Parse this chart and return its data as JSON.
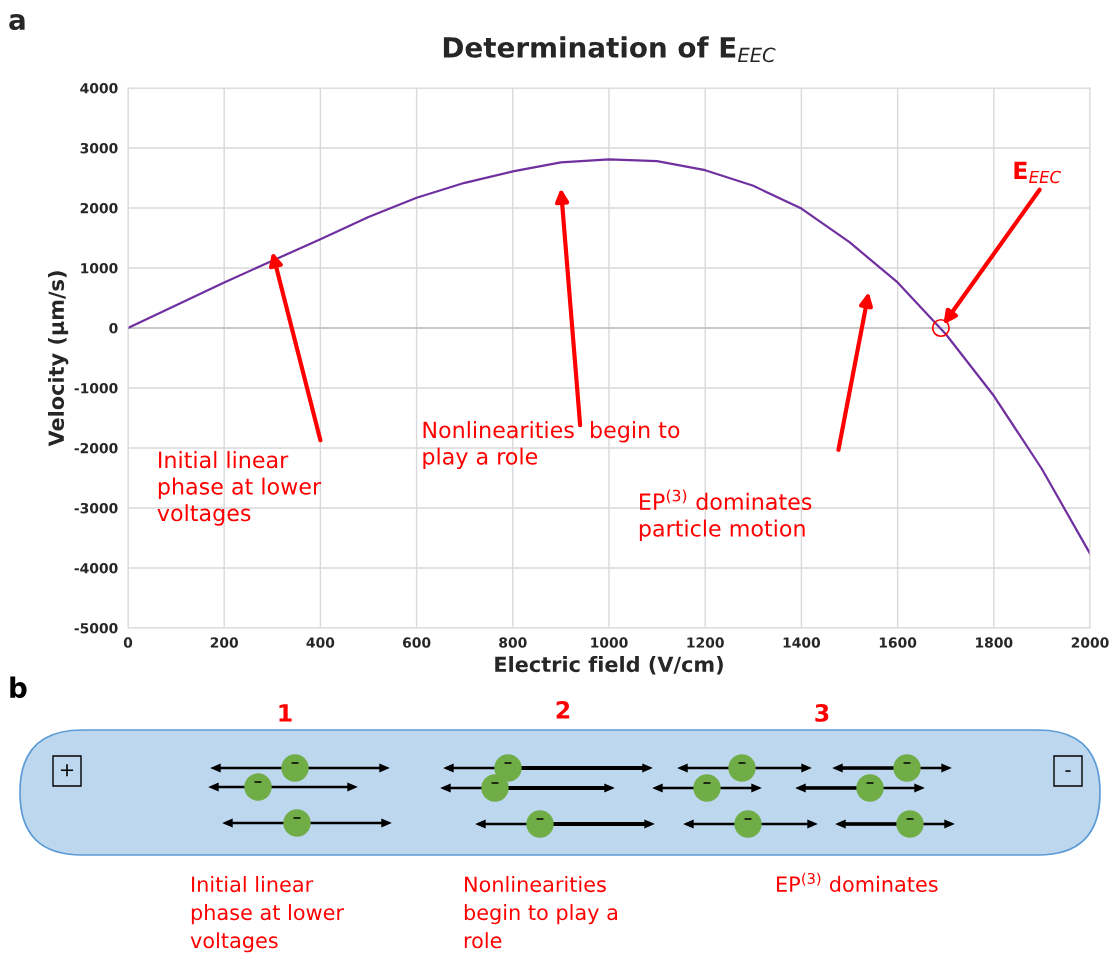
{
  "chart_data": [
    {
      "type": "line",
      "title": "Determination of E$_{EEC}$",
      "xlabel": "Electric field (V/cm)",
      "ylabel": "Velocity (µm/s)",
      "xlim": [
        0,
        2000
      ],
      "xticks": [
        0,
        200,
        400,
        600,
        800,
        1000,
        1200,
        1400,
        1600,
        1800,
        2000
      ],
      "ylim": [
        -5000,
        4000
      ],
      "yticks": [
        -5000,
        -4000,
        -3000,
        -2000,
        -1000,
        0,
        1000,
        2000,
        3000,
        4000
      ],
      "grid": true,
      "legend": false,
      "series": [
        {
          "type": "line",
          "color": "#7030a0",
          "x": [
            0,
            100,
            200,
            300,
            400,
            500,
            600,
            700,
            800,
            900,
            1000,
            1100,
            1200,
            1300,
            1400,
            1500,
            1600,
            1700,
            1800,
            1900,
            2000
          ],
          "values": [
            0,
            380,
            760,
            1120,
            1480,
            1850,
            2170,
            2420,
            2610,
            2760,
            2810,
            2780,
            2630,
            2370,
            1990,
            1430,
            760,
            -100,
            -1130,
            -2350,
            -3760
          ]
        },
        {
          "type": "scatter",
          "color": "#ff0000",
          "marker": "circle",
          "x": [
            1690
          ],
          "values": [
            0
          ]
        }
      ],
      "annotations": [
        "a",
        "Initial linear\nphase at lower\nvoltages",
        "Nonlinearities  begin to\nplay a role",
        "EP$^{(3)}$ dominates\nparticle motion",
        {
          "text": "E$_{EEC}$",
          "x": 1690,
          "y": 0
        }
      ]
    },
    {
      "type": "other",
      "annotations": [
        "b",
        "1",
        "2",
        "3",
        "+",
        "-",
        "Initial linear\nphase at lower\nvoltages",
        "Nonlinearities\nbegin to play a\nrole",
        "EP$^{(3)}$ dominates"
      ]
    }
  ]
}
